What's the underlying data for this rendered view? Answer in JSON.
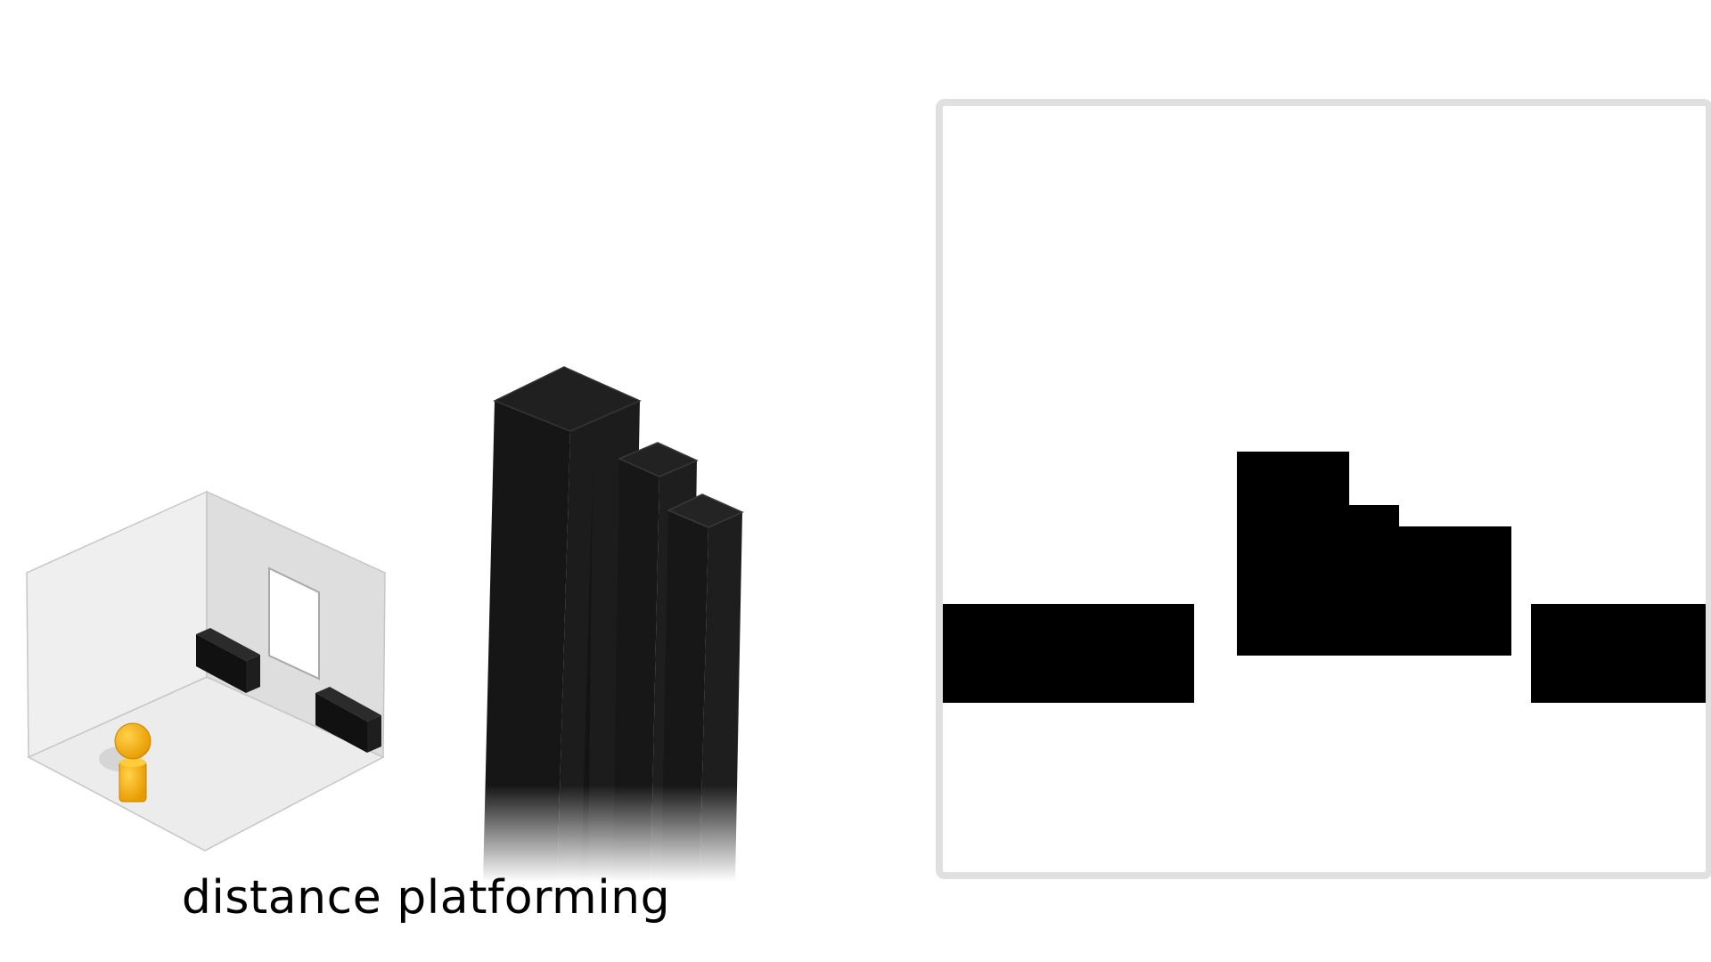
{
  "caption": "distance platforming",
  "colors": {
    "background": "#ffffff",
    "frame_border": "#e0e0e0",
    "block": "#000000",
    "pillar": "#181818",
    "room_wall_left": "#efefef",
    "room_wall_right": "#dedede",
    "room_floor": "#ececec",
    "player": "#f5b000"
  },
  "icons": {
    "room": "isometric-room-icon",
    "player": "player-figure-icon",
    "pillars": "isometric-pillars-icon"
  }
}
